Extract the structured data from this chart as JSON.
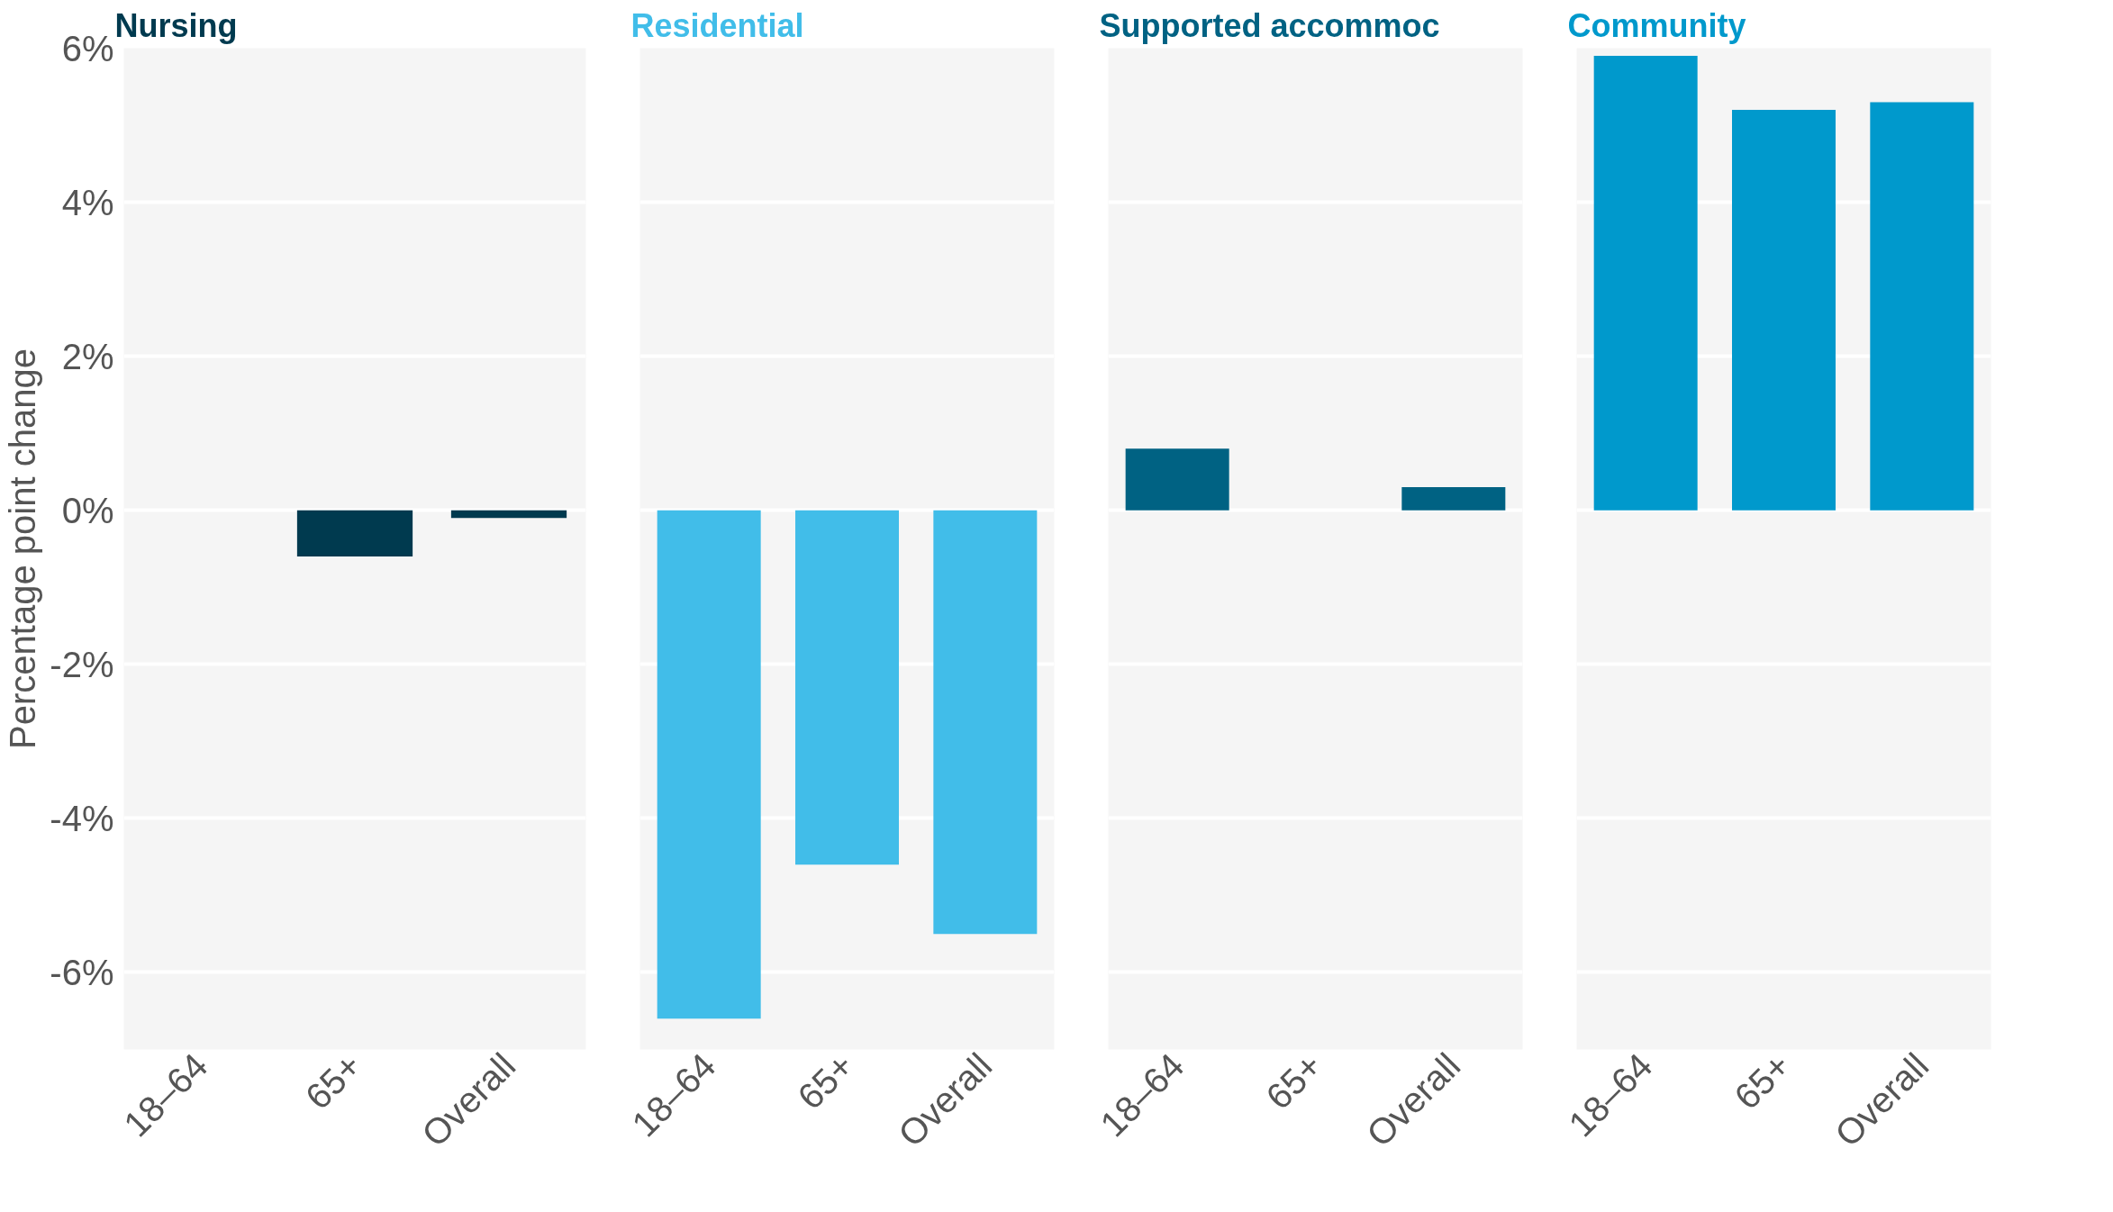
{
  "chart_data": [
    {
      "type": "bar",
      "title": "Nursing",
      "ylabel": "Percentage point change",
      "categories": [
        "18–64",
        "65+",
        "Overall"
      ],
      "values": [
        null,
        -0.6,
        -0.1
      ],
      "color": "#003a4f",
      "ylim": [
        -7,
        6
      ],
      "yticks": [
        {
          "value": -6,
          "label": "-6%"
        },
        {
          "value": -4,
          "label": "-4%"
        },
        {
          "value": -2,
          "label": "-2%"
        },
        {
          "value": 0,
          "label": "0%"
        },
        {
          "value": 2,
          "label": "2%"
        },
        {
          "value": 4,
          "label": "4%"
        },
        {
          "value": 6,
          "label": "6%"
        }
      ],
      "grid": "y"
    },
    {
      "type": "bar",
      "title": "Residential",
      "categories": [
        "18–64",
        "65+",
        "Overall"
      ],
      "values": [
        -6.6,
        -4.6,
        -5.5
      ],
      "color": "#41bde9",
      "ylim": [
        -7,
        6
      ],
      "yticks": [
        -6,
        -4,
        -2,
        0,
        2,
        4,
        6
      ],
      "grid": "y",
      "tick_labels": "x"
    },
    {
      "type": "bar",
      "title": "Supported accommoc",
      "categories": [
        "18–64",
        "65+",
        "Overall"
      ],
      "values": [
        0.8,
        null,
        0.3
      ],
      "color": "#006283",
      "ylim": [
        -7,
        6
      ],
      "yticks": [
        -6,
        -4,
        -2,
        0,
        2,
        4,
        6
      ],
      "grid": "y",
      "tick_labels": "x"
    },
    {
      "type": "bar",
      "title": "Community",
      "categories": [
        "18–64",
        "65+",
        "Overall"
      ],
      "values": [
        5.9,
        5.2,
        5.3
      ],
      "color": "#0099cc",
      "ylim": [
        -7,
        6
      ],
      "yticks": [
        -6,
        -4,
        -2,
        0,
        2,
        4,
        6
      ],
      "grid": "y",
      "tick_labels": "x"
    }
  ]
}
